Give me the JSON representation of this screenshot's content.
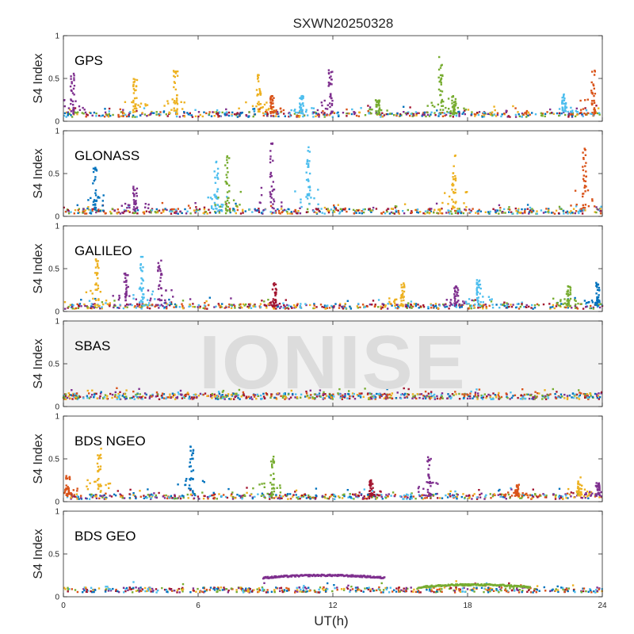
{
  "chart_data": {
    "type": "scatter",
    "title": "SXWN20250328",
    "watermark": "IONISE",
    "xlabel": "UT(h)",
    "ylabel": "S4 Index",
    "xlim": [
      0,
      24
    ],
    "xticks": [
      "0",
      "6",
      "12",
      "18",
      "24"
    ],
    "xtick_values": [
      0,
      6,
      12,
      18,
      24
    ],
    "ylim": [
      0,
      1
    ],
    "yticks": [
      "0",
      "0.5",
      "1"
    ],
    "ytick_values": [
      0,
      0.5,
      1
    ],
    "grid": false,
    "series_colors": [
      "#0072BD",
      "#D95319",
      "#EDB120",
      "#7E2F8E",
      "#77AC30",
      "#4DBEEE",
      "#A2142F"
    ],
    "panels": [
      {
        "label": "GPS",
        "background": "#ffffff",
        "baseline": 0.08,
        "spikes": [
          {
            "t": 0.4,
            "peak": 0.58,
            "c": 3
          },
          {
            "t": 3.2,
            "peak": 0.5,
            "c": 2
          },
          {
            "t": 5.0,
            "peak": 0.6,
            "c": 2
          },
          {
            "t": 8.7,
            "peak": 0.55,
            "c": 2
          },
          {
            "t": 9.3,
            "peak": 0.3,
            "c": 1
          },
          {
            "t": 10.6,
            "peak": 0.3,
            "c": 5
          },
          {
            "t": 11.9,
            "peak": 0.6,
            "c": 3
          },
          {
            "t": 14.0,
            "peak": 0.25,
            "c": 4
          },
          {
            "t": 16.8,
            "peak": 0.75,
            "c": 4
          },
          {
            "t": 17.4,
            "peak": 0.3,
            "c": 4
          },
          {
            "t": 22.3,
            "peak": 0.32,
            "c": 5
          },
          {
            "t": 23.6,
            "peak": 0.62,
            "c": 1
          }
        ]
      },
      {
        "label": "GLONASS",
        "background": "#ffffff",
        "baseline": 0.06,
        "spikes": [
          {
            "t": 1.4,
            "peak": 0.6,
            "c": 0
          },
          {
            "t": 3.2,
            "peak": 0.35,
            "c": 3
          },
          {
            "t": 6.8,
            "peak": 0.65,
            "c": 5
          },
          {
            "t": 7.3,
            "peak": 0.72,
            "c": 4
          },
          {
            "t": 9.3,
            "peak": 0.88,
            "c": 3
          },
          {
            "t": 10.9,
            "peak": 0.82,
            "c": 5
          },
          {
            "t": 17.4,
            "peak": 0.76,
            "c": 2
          },
          {
            "t": 23.2,
            "peak": 0.8,
            "c": 1
          }
        ]
      },
      {
        "label": "GALILEO",
        "background": "#ffffff",
        "baseline": 0.06,
        "spikes": [
          {
            "t": 1.5,
            "peak": 0.62,
            "c": 2
          },
          {
            "t": 2.8,
            "peak": 0.45,
            "c": 3
          },
          {
            "t": 3.5,
            "peak": 0.65,
            "c": 5
          },
          {
            "t": 4.3,
            "peak": 0.6,
            "c": 3
          },
          {
            "t": 9.4,
            "peak": 0.33,
            "c": 6
          },
          {
            "t": 15.1,
            "peak": 0.33,
            "c": 2
          },
          {
            "t": 17.5,
            "peak": 0.3,
            "c": 3
          },
          {
            "t": 18.5,
            "peak": 0.4,
            "c": 5
          },
          {
            "t": 22.5,
            "peak": 0.3,
            "c": 4
          },
          {
            "t": 23.8,
            "peak": 0.35,
            "c": 0
          }
        ]
      },
      {
        "label": "SBAS",
        "background": "#f2f2f2",
        "baseline": 0.12,
        "spikes": []
      },
      {
        "label": "BDS NGEO",
        "background": "#ffffff",
        "baseline": 0.06,
        "spikes": [
          {
            "t": 0.2,
            "peak": 0.3,
            "c": 1
          },
          {
            "t": 1.6,
            "peak": 0.62,
            "c": 2
          },
          {
            "t": 5.7,
            "peak": 0.65,
            "c": 0
          },
          {
            "t": 9.3,
            "peak": 0.55,
            "c": 4
          },
          {
            "t": 13.7,
            "peak": 0.25,
            "c": 6
          },
          {
            "t": 16.3,
            "peak": 0.55,
            "c": 3
          },
          {
            "t": 20.2,
            "peak": 0.2,
            "c": 1
          },
          {
            "t": 23.0,
            "peak": 0.32,
            "c": 2
          },
          {
            "t": 23.8,
            "peak": 0.22,
            "c": 3
          }
        ]
      },
      {
        "label": "BDS GEO",
        "background": "#ffffff",
        "baseline": 0.08,
        "spikes": [],
        "arcs": [
          {
            "t0": 8.9,
            "t1": 14.3,
            "level": 0.22,
            "c": 3
          },
          {
            "t0": 15.8,
            "t1": 20.8,
            "level": 0.11,
            "c": 4
          }
        ]
      }
    ]
  }
}
